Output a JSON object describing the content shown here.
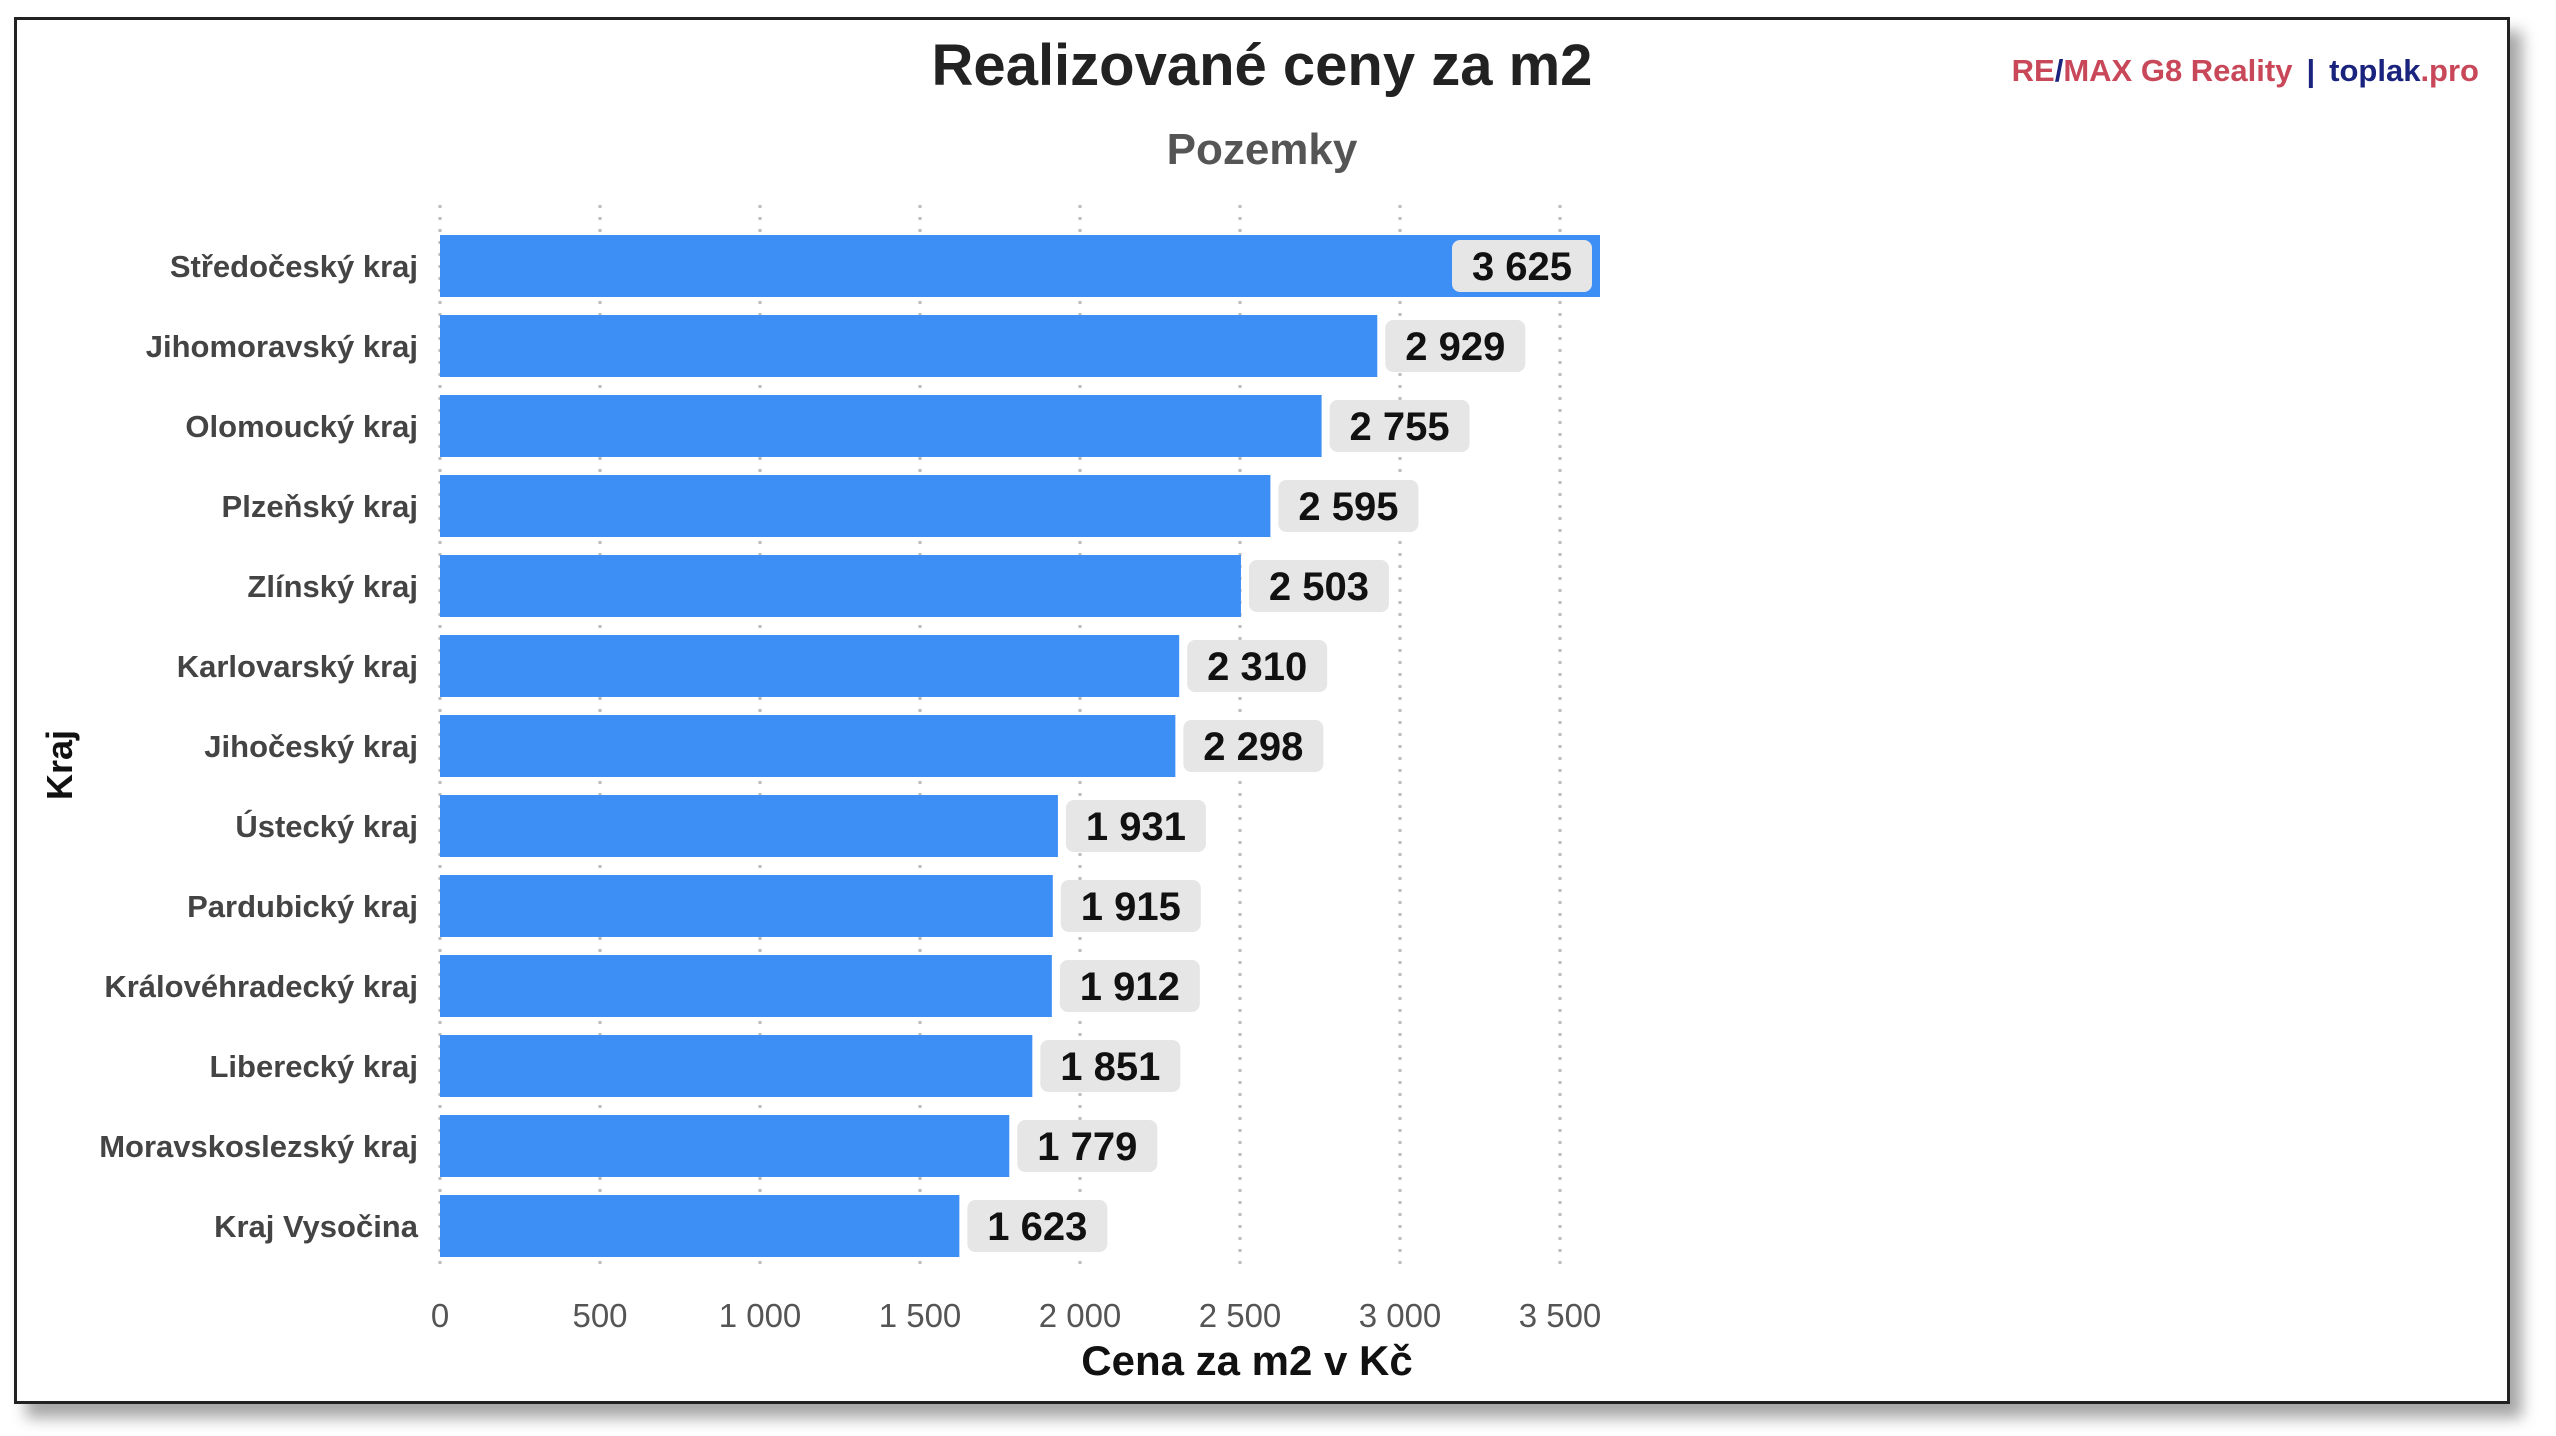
{
  "header": {
    "title": "Realizované ceny za m2",
    "subtitle": "Pozemky",
    "brand": {
      "remax_re": "RE",
      "remax_slash": "/",
      "remax_rest": "MAX G8 Reality",
      "separator": "|",
      "toplak_name": "toplak",
      "toplak_tld": ".pro"
    }
  },
  "colors": {
    "bar": "#3d8ef5",
    "label_bg": "#e6e6e6",
    "grid": "#bbbbbb"
  },
  "chart_data": {
    "type": "bar",
    "orientation": "horizontal",
    "title": "Realizované ceny za m2",
    "subtitle": "Pozemky",
    "xlabel": "Cena za m2 v Kč",
    "ylabel": "Kraj",
    "xlim": [
      0,
      3625
    ],
    "xticks": [
      0,
      500,
      1000,
      1500,
      2000,
      2500,
      3000,
      3500
    ],
    "xtick_labels": [
      "0",
      "500",
      "1 000",
      "1 500",
      "2 000",
      "2 500",
      "3 000",
      "3 500"
    ],
    "grid": "vertical dotted",
    "categories": [
      "Středočeský kraj",
      "Jihomoravský kraj",
      "Olomoucký kraj",
      "Plzeňský kraj",
      "Zlínský kraj",
      "Karlovarský kraj",
      "Jihočeský kraj",
      "Ústecký kraj",
      "Pardubický kraj",
      "Královéhradecký kraj",
      "Liberecký kraj",
      "Moravskoslezský kraj",
      "Kraj Vysočina"
    ],
    "values": [
      3625,
      2929,
      2755,
      2595,
      2503,
      2310,
      2298,
      1931,
      1915,
      1912,
      1851,
      1779,
      1623
    ],
    "value_labels": [
      "3 625",
      "2 929",
      "2 755",
      "2 595",
      "2 503",
      "2 310",
      "2 298",
      "1 931",
      "1 915",
      "1 912",
      "1 851",
      "1 779",
      "1 623"
    ]
  }
}
